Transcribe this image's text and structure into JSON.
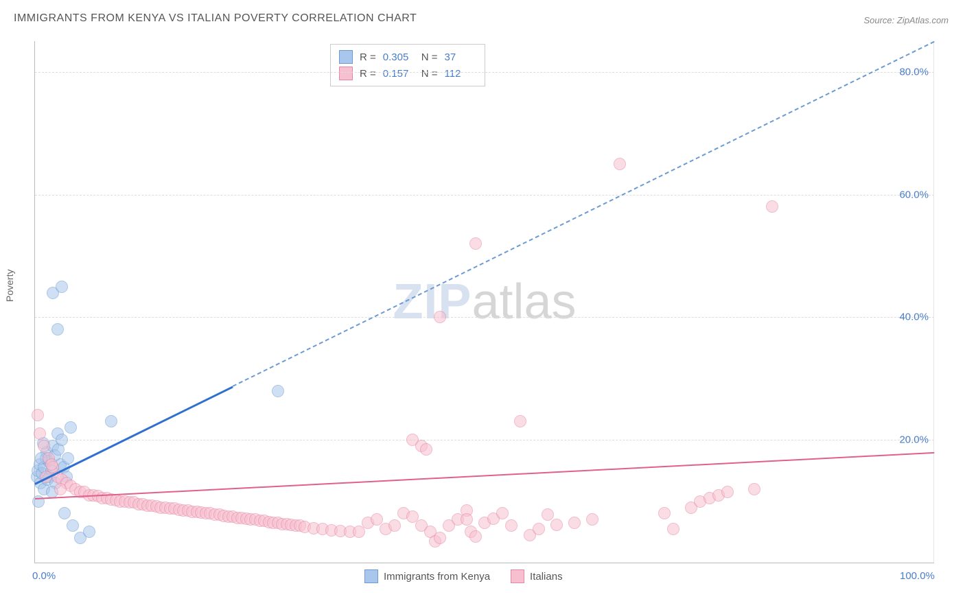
{
  "title": "IMMIGRANTS FROM KENYA VS ITALIAN POVERTY CORRELATION CHART",
  "source_label": "Source: ZipAtlas.com",
  "ylabel": "Poverty",
  "watermark_zip": "ZIP",
  "watermark_atlas": "atlas",
  "chart": {
    "type": "scatter",
    "xlim": [
      0,
      100
    ],
    "ylim": [
      0,
      85
    ],
    "x_ticks": [
      {
        "v": 0,
        "label": "0.0%"
      },
      {
        "v": 100,
        "label": "100.0%"
      }
    ],
    "y_ticks": [
      {
        "v": 20,
        "label": "20.0%"
      },
      {
        "v": 40,
        "label": "40.0%"
      },
      {
        "v": 60,
        "label": "60.0%"
      },
      {
        "v": 80,
        "label": "80.0%"
      }
    ],
    "background_color": "#ffffff",
    "grid_color": "#dddddd",
    "axis_color": "#bbbbbb",
    "marker_radius": 8,
    "marker_opacity": 0.55,
    "marker_border_width": 1.5,
    "series": [
      {
        "name": "Immigrants from Kenya",
        "fill_color": "#a9c7ec",
        "border_color": "#6b9bd1",
        "line_color": "#2f6fd0",
        "line_width": 3,
        "dash_color": "#6b9bd1",
        "R": "0.305",
        "N": "37",
        "trend": {
          "x1": 0,
          "y1": 13,
          "x2": 100,
          "y2": 85,
          "solid_until_x": 22
        },
        "points": [
          [
            0.2,
            14
          ],
          [
            0.3,
            15
          ],
          [
            0.5,
            16
          ],
          [
            0.6,
            13
          ],
          [
            0.8,
            14.5
          ],
          [
            1.0,
            15.5
          ],
          [
            1.2,
            17
          ],
          [
            1.3,
            18
          ],
          [
            1.5,
            16.5
          ],
          [
            1.6,
            14
          ],
          [
            1.8,
            15
          ],
          [
            2.0,
            19
          ],
          [
            2.2,
            17.5
          ],
          [
            2.5,
            21
          ],
          [
            2.6,
            18.5
          ],
          [
            2.8,
            16
          ],
          [
            3.0,
            20
          ],
          [
            3.2,
            15.5
          ],
          [
            3.5,
            14
          ],
          [
            3.7,
            17
          ],
          [
            4.0,
            22
          ],
          [
            1.0,
            12
          ],
          [
            1.4,
            13.5
          ],
          [
            0.7,
            17
          ],
          [
            2.3,
            13
          ],
          [
            1.9,
            11.5
          ],
          [
            0.4,
            10
          ],
          [
            3.3,
            8
          ],
          [
            4.2,
            6
          ],
          [
            5.0,
            4
          ],
          [
            6.0,
            5
          ],
          [
            2.0,
            44
          ],
          [
            3.0,
            45
          ],
          [
            2.5,
            38
          ],
          [
            8.5,
            23
          ],
          [
            27,
            28
          ],
          [
            0.9,
            19.5
          ]
        ]
      },
      {
        "name": "Italians",
        "fill_color": "#f7c0d0",
        "border_color": "#e884a4",
        "line_color": "#e05f8b",
        "line_width": 2.5,
        "R": "0.157",
        "N": "112",
        "trend": {
          "x1": 0,
          "y1": 10.5,
          "x2": 100,
          "y2": 18,
          "solid_until_x": 100
        },
        "points": [
          [
            0.3,
            24
          ],
          [
            0.5,
            21
          ],
          [
            1,
            19
          ],
          [
            1.5,
            17
          ],
          [
            2,
            15.5
          ],
          [
            2.5,
            14
          ],
          [
            3,
            13.5
          ],
          [
            3.5,
            13
          ],
          [
            4,
            12.5
          ],
          [
            4.5,
            12
          ],
          [
            5,
            11.5
          ],
          [
            5.5,
            11.5
          ],
          [
            6,
            11
          ],
          [
            6.5,
            11
          ],
          [
            7,
            10.8
          ],
          [
            7.5,
            10.5
          ],
          [
            8,
            10.5
          ],
          [
            8.5,
            10.3
          ],
          [
            9,
            10.2
          ],
          [
            9.5,
            10
          ],
          [
            10,
            10
          ],
          [
            10.5,
            9.8
          ],
          [
            11,
            9.8
          ],
          [
            11.5,
            9.5
          ],
          [
            12,
            9.5
          ],
          [
            12.5,
            9.3
          ],
          [
            13,
            9.3
          ],
          [
            13.5,
            9.2
          ],
          [
            14,
            9
          ],
          [
            14.5,
            9
          ],
          [
            15,
            8.8
          ],
          [
            15.5,
            8.8
          ],
          [
            16,
            8.6
          ],
          [
            16.5,
            8.5
          ],
          [
            17,
            8.5
          ],
          [
            17.5,
            8.3
          ],
          [
            18,
            8.3
          ],
          [
            18.5,
            8.2
          ],
          [
            19,
            8
          ],
          [
            19.5,
            8
          ],
          [
            20,
            7.8
          ],
          [
            20.5,
            7.8
          ],
          [
            21,
            7.6
          ],
          [
            21.5,
            7.5
          ],
          [
            22,
            7.5
          ],
          [
            22.5,
            7.3
          ],
          [
            23,
            7.3
          ],
          [
            23.5,
            7.2
          ],
          [
            24,
            7
          ],
          [
            24.5,
            7
          ],
          [
            25,
            6.8
          ],
          [
            25.5,
            6.8
          ],
          [
            26,
            6.6
          ],
          [
            26.5,
            6.5
          ],
          [
            27,
            6.5
          ],
          [
            27.5,
            6.3
          ],
          [
            28,
            6.3
          ],
          [
            28.5,
            6.2
          ],
          [
            29,
            6
          ],
          [
            29.5,
            6
          ],
          [
            30,
            5.8
          ],
          [
            31,
            5.6
          ],
          [
            32,
            5.5
          ],
          [
            33,
            5.3
          ],
          [
            34,
            5.2
          ],
          [
            35,
            5
          ],
          [
            36,
            5
          ],
          [
            37,
            6.5
          ],
          [
            38,
            7
          ],
          [
            39,
            5.5
          ],
          [
            40,
            6
          ],
          [
            41,
            8
          ],
          [
            42,
            7.5
          ],
          [
            43,
            6
          ],
          [
            44,
            5
          ],
          [
            44.5,
            3.5
          ],
          [
            45,
            4
          ],
          [
            46,
            6
          ],
          [
            47,
            7
          ],
          [
            48,
            8.5
          ],
          [
            48.5,
            5
          ],
          [
            49,
            4.2
          ],
          [
            50,
            6.5
          ],
          [
            51,
            7.2
          ],
          [
            52,
            8
          ],
          [
            53,
            6
          ],
          [
            54,
            23
          ],
          [
            55,
            4.5
          ],
          [
            56,
            5.5
          ],
          [
            57,
            7.8
          ],
          [
            58,
            6.2
          ],
          [
            42,
            20
          ],
          [
            43,
            19
          ],
          [
            43.5,
            18.5
          ],
          [
            45,
            40
          ],
          [
            49,
            52
          ],
          [
            48,
            7
          ],
          [
            60,
            6.5
          ],
          [
            62,
            7
          ],
          [
            65,
            65
          ],
          [
            70,
            8
          ],
          [
            71,
            5.5
          ],
          [
            73,
            9
          ],
          [
            74,
            10
          ],
          [
            75,
            10.5
          ],
          [
            76,
            11
          ],
          [
            77,
            11.5
          ],
          [
            80,
            12
          ],
          [
            82,
            58
          ],
          [
            1.2,
            14
          ],
          [
            1.8,
            16
          ],
          [
            2.8,
            12
          ]
        ]
      }
    ]
  },
  "legend_top": {
    "r_label": "R =",
    "n_label": "N ="
  },
  "legend_bottom": {
    "items": [
      "Immigrants from Kenya",
      "Italians"
    ]
  }
}
